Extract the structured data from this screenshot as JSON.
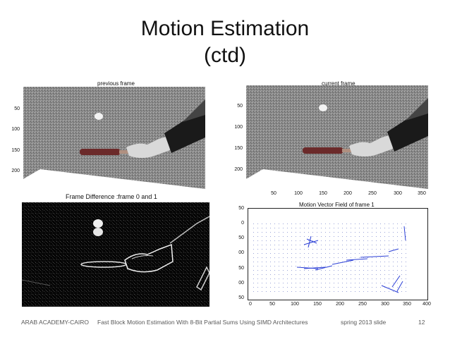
{
  "slide": {
    "title_line1": "Motion Estimation",
    "title_line2": "(ctd)"
  },
  "panels": {
    "previous_frame": {
      "title": "previous frame",
      "y_ticks": [
        "50",
        "100",
        "150",
        "200"
      ]
    },
    "current_frame": {
      "title": "current frame",
      "y_ticks": [
        "50",
        "100",
        "150",
        "200"
      ],
      "x_ticks": [
        "50",
        "100",
        "150",
        "200",
        "250",
        "300",
        "350"
      ]
    },
    "frame_difference": {
      "title": "Frame Difference :frame 0 and 1"
    },
    "motion_vector_field": {
      "title": "Motion Vector Field of frame 1",
      "y_ticks": [
        "50",
        "0",
        "50",
        "00",
        "50",
        "00",
        "50"
      ],
      "x_ticks": [
        "0",
        "50",
        "100",
        "150",
        "200",
        "250",
        "300",
        "350",
        "400"
      ]
    }
  },
  "footer": {
    "institution": "ARAB ACADEMY-CAIRO",
    "paper_title": "Fast Block Motion Estimation With 8-Bit Partial Sums Using SIMD Architectures",
    "term": "spring 2013 slide",
    "slide_number": "12"
  },
  "colors": {
    "vector": "#2b3fd6",
    "noise_bg": "#7a7a7a",
    "paddle": "#6b2a2a"
  }
}
